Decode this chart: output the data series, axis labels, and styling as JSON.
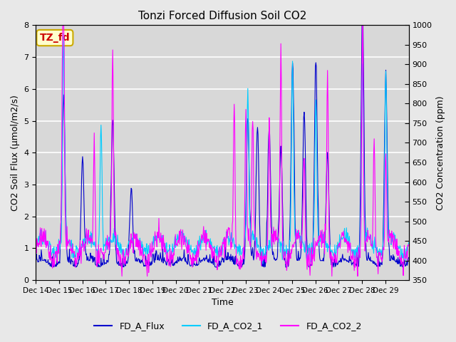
{
  "title": "Tonzi Forced Diffusion Soil CO2",
  "xlabel": "Time",
  "ylabel_left": "CO2 Soil Flux (μmol/m2/s)",
  "ylabel_right": "CO2 Concentration (ppm)",
  "ylim_left": [
    0.0,
    8.0
  ],
  "ylim_right": [
    350,
    1000
  ],
  "x_tick_labels": [
    "Dec 14",
    "Dec 15",
    "Dec 16",
    "Dec 17",
    "Dec 18",
    "Dec 19",
    "Dec 20",
    "Dec 21",
    "Dec 22",
    "Dec 23",
    "Dec 24",
    "Dec 25",
    "Dec 26",
    "Dec 27",
    "Dec 28",
    "Dec 29"
  ],
  "legend_labels": [
    "FD_A_Flux",
    "FD_A_CO2_1",
    "FD_A_CO2_2"
  ],
  "legend_colors": [
    "#0000cc",
    "#00ccff",
    "#ff00ff"
  ],
  "flux_color": "#0000cc",
  "co2_1_color": "#00ccff",
  "co2_2_color": "#ff00ff",
  "background_color": "#e8e8e8",
  "plot_bg_color": "#d8d8d8",
  "tag_text": "TZ_fd",
  "tag_facecolor": "#ffffcc",
  "tag_edgecolor": "#ccaa00",
  "tag_textcolor": "#cc0000",
  "grid_color": "#ffffff",
  "yticks_left": [
    0.0,
    1.0,
    2.0,
    3.0,
    4.0,
    5.0,
    6.0,
    7.0,
    8.0
  ],
  "yticks_right": [
    350,
    400,
    450,
    500,
    550,
    600,
    650,
    700,
    750,
    800,
    850,
    900,
    950,
    1000
  ],
  "n_days": 16,
  "n_per_day": 48
}
